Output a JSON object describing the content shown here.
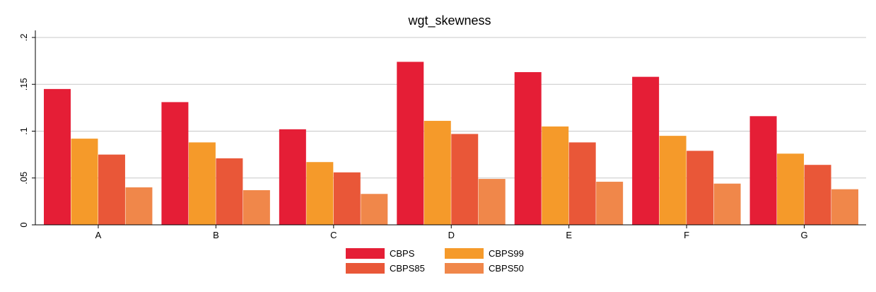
{
  "chart_data": {
    "type": "bar",
    "title": "wgt_skewness",
    "categories": [
      "A",
      "B",
      "C",
      "D",
      "E",
      "F",
      "G"
    ],
    "series": [
      {
        "name": "CBPS",
        "color": "#e51e36",
        "values": [
          0.145,
          0.131,
          0.102,
          0.174,
          0.163,
          0.158,
          0.116
        ]
      },
      {
        "name": "CBPS99",
        "color": "#f59a2a",
        "values": [
          0.092,
          0.088,
          0.067,
          0.111,
          0.105,
          0.095,
          0.076
        ]
      },
      {
        "name": "CBPS85",
        "color": "#e95738",
        "values": [
          0.075,
          0.071,
          0.056,
          0.097,
          0.088,
          0.079,
          0.064
        ]
      },
      {
        "name": "CBPS50",
        "color": "#f0874a",
        "values": [
          0.04,
          0.037,
          0.033,
          0.049,
          0.046,
          0.044,
          0.038
        ]
      }
    ],
    "yticks": [
      0,
      0.05,
      0.1,
      0.15,
      0.2
    ],
    "ytick_labels": [
      "0",
      ".05",
      ".1",
      ".15",
      ".2"
    ],
    "ylim": [
      0,
      0.2
    ],
    "grid": true,
    "legend_position": "bottom"
  }
}
